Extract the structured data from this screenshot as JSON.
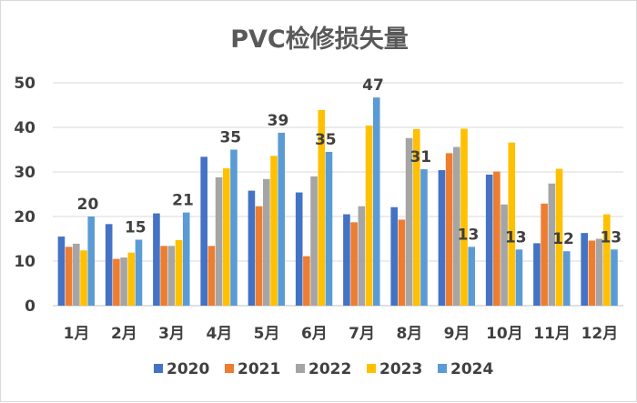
{
  "chart_data": {
    "type": "bar",
    "title": "PVC检修损失量",
    "categories": [
      "1月",
      "2月",
      "3月",
      "4月",
      "5月",
      "6月",
      "7月",
      "8月",
      "9月",
      "10月",
      "11月",
      "12月"
    ],
    "ylim": [
      0,
      50
    ],
    "yticks": [
      "0",
      "10",
      "20",
      "30",
      "40",
      "50"
    ],
    "grid": true,
    "legend_position": "bottom",
    "colors": [
      "#4472c4",
      "#ed7d31",
      "#a5a5a5",
      "#ffc000",
      "#5b9bd5"
    ],
    "series": [
      {
        "name": "2020",
        "values": [
          15.5,
          18.3,
          20.7,
          33.4,
          25.8,
          25.4,
          20.5,
          22.1,
          30.4,
          29.4,
          14.0,
          16.3
        ]
      },
      {
        "name": "2021",
        "values": [
          13.2,
          10.5,
          13.4,
          13.4,
          22.3,
          11.1,
          18.7,
          19.3,
          34.2,
          30.1,
          22.9,
          14.6
        ]
      },
      {
        "name": "2022",
        "values": [
          13.9,
          10.8,
          13.4,
          28.8,
          28.4,
          29.0,
          22.3,
          37.6,
          35.6,
          22.7,
          27.4,
          15.0
        ]
      },
      {
        "name": "2023",
        "values": [
          12.4,
          11.9,
          14.7,
          30.8,
          33.6,
          43.9,
          40.4,
          39.6,
          39.7,
          36.6,
          30.7,
          20.5
        ]
      },
      {
        "name": "2024",
        "values": [
          20.0,
          14.8,
          20.9,
          35.0,
          38.8,
          34.5,
          46.7,
          30.6,
          13.2,
          12.6,
          12.2,
          12.6
        ]
      }
    ],
    "data_labels": {
      "series": "2024",
      "values": [
        "20",
        "15",
        "21",
        "35",
        "39",
        "35",
        "47",
        "31",
        "13",
        "13",
        "12",
        "13"
      ]
    }
  }
}
